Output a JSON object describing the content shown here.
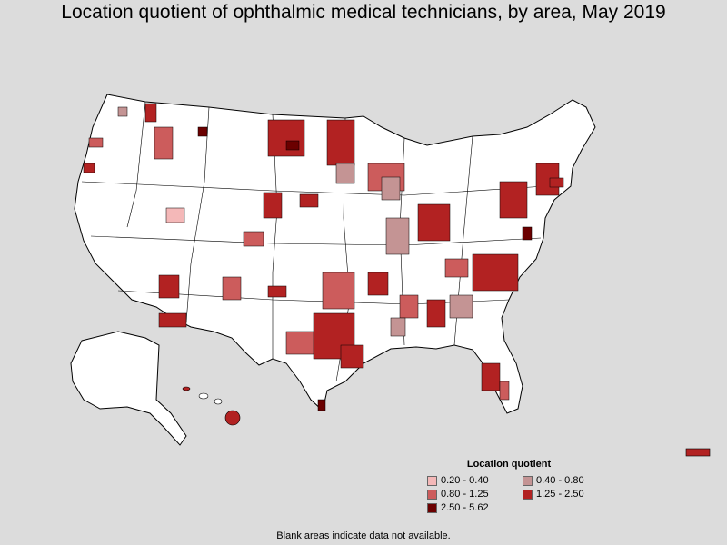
{
  "title": "Location quotient of ophthalmic medical technicians, by area, May 2019",
  "legend": {
    "title": "Location quotient",
    "items": [
      {
        "label": "0.20 - 0.40",
        "color": "#f4b8b8"
      },
      {
        "label": "0.40 - 0.80",
        "color": "#c49494"
      },
      {
        "label": "0.80 - 1.25",
        "color": "#cc5c5c"
      },
      {
        "label": "1.25 - 2.50",
        "color": "#b22222"
      },
      {
        "label": "2.50 - 5.62",
        "color": "#6b0000"
      }
    ]
  },
  "footnote": "Blank areas indicate data not available.",
  "colors": {
    "background": "#dcdcdc",
    "land": "#ffffff",
    "border": "#000000"
  }
}
